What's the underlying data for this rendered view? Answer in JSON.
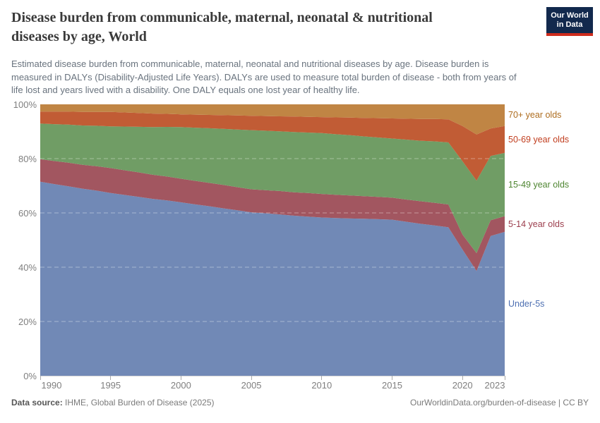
{
  "header": {
    "title": "Disease burden from communicable, maternal, neonatal & nutritional diseases by age, World",
    "title_lines": [
      "Disease burden from communicable, maternal, neonatal & nutritional",
      "diseases by age, World"
    ],
    "subtitle": "Estimated disease burden from communicable, maternal, neonatal and nutritional diseases by age. Disease burden is measured in DALYs (Disability-Adjusted Life Years). DALYs are used to measure total burden of disease - both from years of life lost and years lived with a disability. One DALY equals one lost year of healthy life.",
    "subtitle_lines": [
      "Estimated disease burden from communicable, maternal, neonatal and nutritional diseases by age. Disease burden is",
      "measured in DALYs (Disability-Adjusted Life Years). DALYs are used to measure total burden of disease - both from years of",
      "life lost and years lived with a disability. One DALY equals one lost year of healthy life."
    ],
    "logo": {
      "line1": "Our World",
      "line2": "in Data",
      "bg": "#12294d",
      "accent": "#cf2c1d"
    }
  },
  "chart_data": {
    "type": "area",
    "stacked": true,
    "relative": true,
    "grid": "horizontal-dashed",
    "legend_position": "right",
    "ylim": [
      0,
      100
    ],
    "yticks": [
      "0%",
      "20%",
      "40%",
      "60%",
      "80%",
      "100%"
    ],
    "xticks": [
      1990,
      1995,
      2000,
      2005,
      2010,
      2015,
      2020,
      2023
    ],
    "x": [
      1990,
      1991,
      1992,
      1993,
      1994,
      1995,
      1996,
      1997,
      1998,
      1999,
      2000,
      2001,
      2002,
      2003,
      2004,
      2005,
      2006,
      2007,
      2008,
      2009,
      2010,
      2011,
      2012,
      2013,
      2014,
      2015,
      2016,
      2017,
      2018,
      2019,
      2020,
      2021,
      2022,
      2023
    ],
    "unit": "% of total DALYs",
    "series": [
      {
        "id": "under-5s",
        "name": "Under-5s",
        "color": "#7189b6",
        "label_color": "#4e70b2",
        "values": [
          71.5,
          70.7,
          69.9,
          69.0,
          68.2,
          67.4,
          66.7,
          66.0,
          65.3,
          64.6,
          63.9,
          63.2,
          62.4,
          61.7,
          60.9,
          60.2,
          59.8,
          59.4,
          59.0,
          58.7,
          58.3,
          58.1,
          58.0,
          57.8,
          57.7,
          57.5,
          56.8,
          56.0,
          55.3,
          54.6,
          46.5,
          38.6,
          51.5,
          53.0
        ]
      },
      {
        "id": "5-14",
        "name": "5-14 year olds",
        "color": "#a25660",
        "label_color": "#9c3e4d",
        "values": [
          8.3,
          8.5,
          8.7,
          8.8,
          9.0,
          9.2,
          9.1,
          9.0,
          8.9,
          8.8,
          8.7,
          8.7,
          8.6,
          8.6,
          8.5,
          8.5,
          8.5,
          8.6,
          8.6,
          8.7,
          8.7,
          8.6,
          8.5,
          8.3,
          8.2,
          8.1,
          8.2,
          8.3,
          8.3,
          8.4,
          5.5,
          6.6,
          5.8,
          5.8
        ]
      },
      {
        "id": "15-49",
        "name": "15-49 year olds",
        "color": "#709d65",
        "label_color": "#4e8531",
        "values": [
          13.1,
          13.6,
          14.0,
          14.5,
          14.9,
          15.4,
          16.1,
          16.8,
          17.6,
          18.3,
          19.0,
          19.6,
          20.1,
          20.7,
          21.2,
          21.8,
          21.9,
          22.0,
          22.2,
          22.3,
          22.4,
          22.3,
          22.2,
          22.0,
          21.9,
          21.8,
          22.1,
          22.3,
          22.6,
          22.8,
          27.0,
          26.7,
          23.7,
          23.3
        ]
      },
      {
        "id": "50-69",
        "name": "50-69 year olds",
        "color": "#c15c35",
        "label_color": "#c13e1f",
        "values": [
          4.4,
          4.6,
          4.8,
          5.0,
          5.1,
          5.3,
          5.2,
          5.1,
          5.0,
          4.8,
          4.7,
          4.8,
          4.9,
          5.0,
          5.2,
          5.3,
          5.4,
          5.5,
          5.7,
          5.8,
          5.9,
          6.2,
          6.5,
          6.8,
          7.1,
          7.4,
          7.7,
          8.0,
          8.2,
          8.5,
          13.0,
          17.0,
          10.1,
          9.9
        ]
      },
      {
        "id": "70-plus",
        "name": "70+ year olds",
        "color": "#c08544",
        "label_color": "#ad6c1e",
        "values": [
          2.7,
          2.7,
          2.7,
          2.8,
          2.8,
          2.8,
          3.0,
          3.2,
          3.4,
          3.5,
          3.7,
          3.8,
          3.9,
          4.0,
          4.1,
          4.2,
          4.3,
          4.4,
          4.5,
          4.6,
          4.7,
          4.8,
          4.9,
          5.0,
          5.1,
          5.2,
          5.3,
          5.4,
          5.4,
          5.5,
          8.0,
          11.1,
          8.9,
          8.0
        ]
      }
    ]
  },
  "footer": {
    "source_label": "Data source:",
    "source": "IHME, Global Burden of Disease (2025)",
    "right": "OurWorldinData.org/burden-of-disease | CC BY"
  }
}
